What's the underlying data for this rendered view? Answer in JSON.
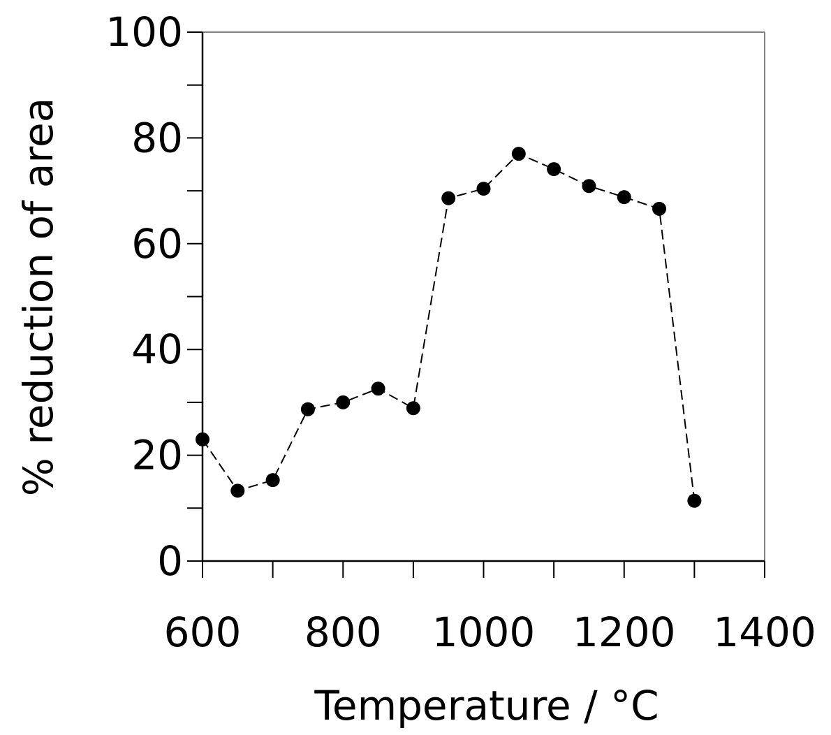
{
  "chart_data": {
    "type": "line",
    "title": "",
    "xlabel": "Temperature / °C",
    "ylabel": "% reduction of area",
    "xlim": [
      600,
      1400
    ],
    "ylim": [
      0,
      100
    ],
    "x_ticks": [
      600,
      800,
      1000,
      1200,
      1400
    ],
    "x_minor_step": 100,
    "y_ticks": [
      0,
      20,
      40,
      60,
      80,
      100
    ],
    "y_minor_step": 10,
    "grid": false,
    "line_style": "dashed",
    "marker": "filled-circle",
    "colors": {
      "series": "#000000",
      "frame": "#808080"
    },
    "series": [
      {
        "x": [
          600,
          650,
          700,
          750,
          800,
          850,
          900,
          950,
          1000,
          1050,
          1100,
          1150,
          1200,
          1250,
          1300
        ],
        "y": [
          23.0,
          13.3,
          15.3,
          28.7,
          30.0,
          32.6,
          28.9,
          68.6,
          70.4,
          77.0,
          74.1,
          70.9,
          68.8,
          66.6,
          11.4
        ]
      }
    ]
  }
}
